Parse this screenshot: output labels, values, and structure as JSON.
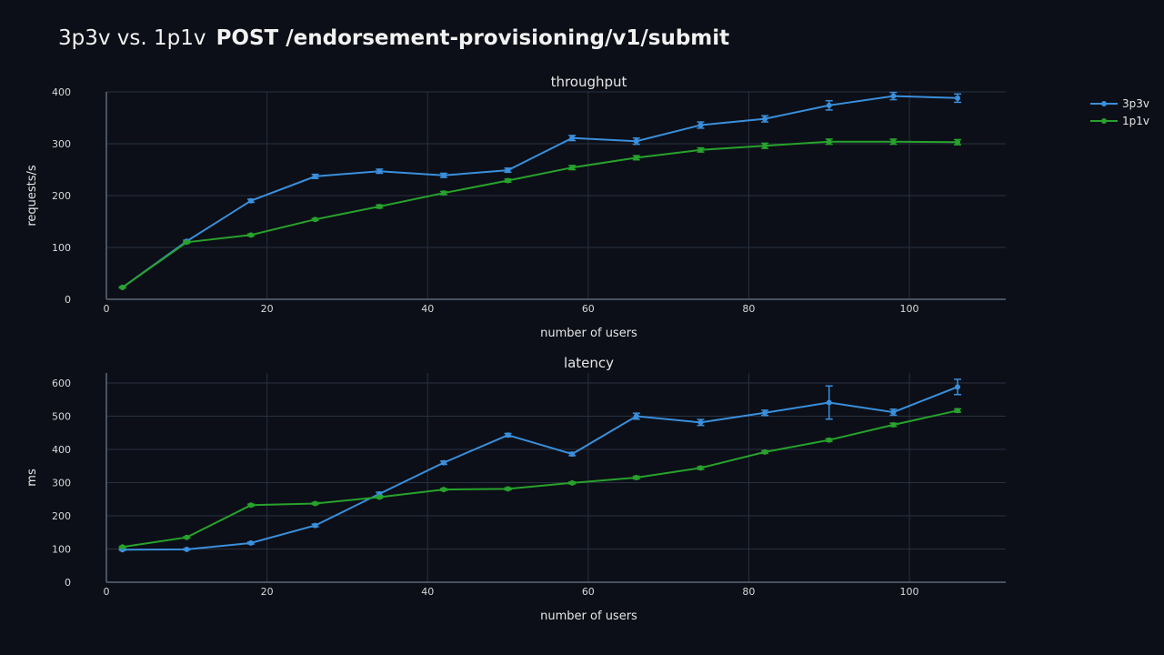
{
  "title": {
    "prefix": "3p3v vs. 1p1v",
    "endpoint": "POST /endorsement-provisioning/v1/submit"
  },
  "colors": {
    "background": "#0c0f17",
    "series_3p3v": "#3a8fdc",
    "series_1p1v": "#27a22c"
  },
  "legend": {
    "position": "top-right",
    "items": [
      "3p3v",
      "1p1v"
    ]
  },
  "chart_data": [
    {
      "type": "line",
      "title": "throughput",
      "xlabel": "number of users",
      "ylabel": "requests/s",
      "x": [
        2,
        10,
        18,
        26,
        34,
        42,
        50,
        58,
        66,
        74,
        82,
        90,
        98,
        106
      ],
      "xlim": [
        0,
        112
      ],
      "ylim": [
        0,
        400
      ],
      "xticks": [
        0,
        20,
        40,
        60,
        80,
        100
      ],
      "yticks": [
        0,
        100,
        200,
        300,
        400
      ],
      "grid": true,
      "series": [
        {
          "name": "3p3v",
          "values": [
            23,
            112,
            190,
            237,
            247,
            239,
            249,
            311,
            305,
            336,
            348,
            374,
            392,
            388
          ],
          "error": [
            1,
            2,
            3,
            4,
            4,
            4,
            4,
            5,
            6,
            6,
            6,
            9,
            7,
            8
          ]
        },
        {
          "name": "1p1v",
          "values": [
            23,
            110,
            124,
            154,
            179,
            205,
            229,
            254,
            273,
            288,
            296,
            304,
            304,
            303
          ],
          "error": [
            1,
            2,
            2,
            2,
            3,
            3,
            3,
            4,
            4,
            4,
            5,
            5,
            5,
            5
          ]
        }
      ]
    },
    {
      "type": "line",
      "title": "latency",
      "xlabel": "number of users",
      "ylabel": "ms",
      "x": [
        2,
        10,
        18,
        26,
        34,
        42,
        50,
        58,
        66,
        74,
        82,
        90,
        98,
        106
      ],
      "xlim": [
        0,
        112
      ],
      "ylim": [
        0,
        630
      ],
      "xticks": [
        0,
        20,
        40,
        60,
        80,
        100
      ],
      "yticks": [
        0,
        100,
        200,
        300,
        400,
        500,
        600
      ],
      "grid": true,
      "series": [
        {
          "name": "3p3v",
          "values": [
            98,
            99,
            118,
            171,
            266,
            360,
            443,
            386,
            500,
            481,
            510,
            541,
            512,
            588
          ],
          "error": [
            2,
            2,
            3,
            4,
            5,
            5,
            5,
            5,
            9,
            9,
            8,
            50,
            9,
            23
          ]
        },
        {
          "name": "1p1v",
          "values": [
            106,
            135,
            232,
            237,
            256,
            279,
            281,
            299,
            315,
            344,
            392,
            428,
            474,
            517
          ],
          "error": [
            2,
            2,
            3,
            3,
            3,
            3,
            3,
            3,
            4,
            4,
            4,
            4,
            5,
            5
          ]
        }
      ]
    }
  ]
}
